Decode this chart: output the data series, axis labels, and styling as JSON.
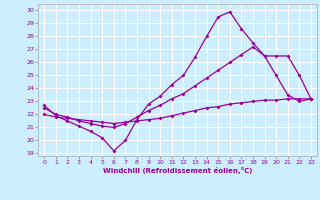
{
  "xlabel": "Windchill (Refroidissement éolien,°C)",
  "background_color": "#cceeff",
  "grid_color": "#ffffff",
  "line_color": "#990099",
  "xlim": [
    -0.5,
    23.5
  ],
  "ylim": [
    18.8,
    30.5
  ],
  "xticks": [
    0,
    1,
    2,
    3,
    4,
    5,
    6,
    7,
    8,
    9,
    10,
    11,
    12,
    13,
    14,
    15,
    16,
    17,
    18,
    19,
    20,
    21,
    22,
    23
  ],
  "yticks": [
    19,
    20,
    21,
    22,
    23,
    24,
    25,
    26,
    27,
    28,
    29,
    30
  ],
  "line1_x": [
    0,
    1,
    2,
    3,
    4,
    5,
    6,
    7,
    8,
    9,
    10,
    11,
    12,
    13,
    14,
    15,
    16,
    17,
    18,
    19,
    20,
    21,
    22,
    23
  ],
  "line1_y": [
    22.7,
    21.9,
    21.5,
    21.1,
    20.7,
    20.2,
    19.2,
    20.0,
    21.6,
    22.8,
    23.4,
    24.3,
    25.0,
    26.4,
    28.0,
    29.5,
    29.9,
    28.6,
    27.5,
    26.5,
    25.0,
    23.5,
    23.0,
    23.2
  ],
  "line2_x": [
    0,
    1,
    2,
    3,
    4,
    5,
    6,
    7,
    8,
    9,
    10,
    11,
    12,
    13,
    14,
    15,
    16,
    17,
    18,
    19,
    20,
    21,
    22,
    23
  ],
  "line2_y": [
    22.5,
    22.0,
    21.8,
    21.5,
    21.3,
    21.1,
    21.0,
    21.3,
    21.8,
    22.3,
    22.7,
    23.2,
    23.6,
    24.2,
    24.8,
    25.4,
    26.0,
    26.6,
    27.2,
    26.5,
    26.5,
    26.5,
    25.0,
    23.2
  ],
  "line3_x": [
    0,
    1,
    2,
    3,
    4,
    5,
    6,
    7,
    8,
    9,
    10,
    11,
    12,
    13,
    14,
    15,
    16,
    17,
    18,
    19,
    20,
    21,
    22,
    23
  ],
  "line3_y": [
    22.0,
    21.8,
    21.7,
    21.6,
    21.5,
    21.4,
    21.3,
    21.4,
    21.5,
    21.6,
    21.7,
    21.9,
    22.1,
    22.3,
    22.5,
    22.6,
    22.8,
    22.9,
    23.0,
    23.1,
    23.1,
    23.2,
    23.2,
    23.2
  ]
}
